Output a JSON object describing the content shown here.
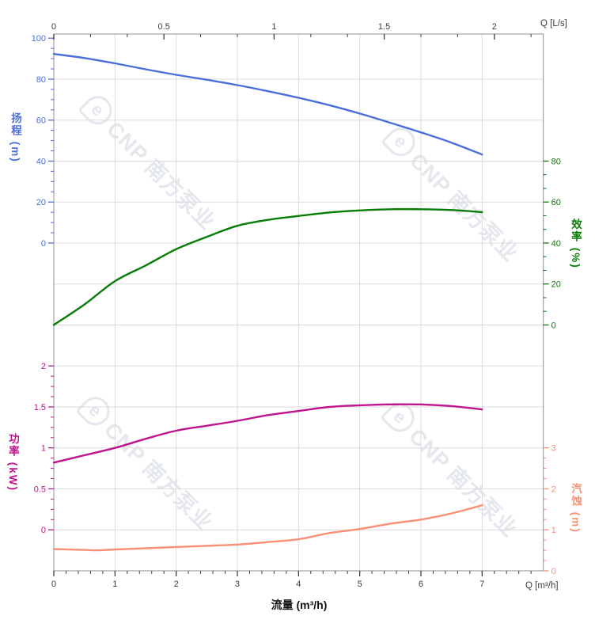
{
  "watermark": {
    "logo": "e",
    "text": "CNP 南方泵业",
    "color": "#e4e7ed"
  },
  "chart_data": {
    "type": "line",
    "title": "",
    "grid_color": "#dbdbdb",
    "border_color": "#a3a3a3",
    "tick_text_color": "#3d3d3d",
    "grid": true,
    "x_axis": {
      "bottom": {
        "title": "流量 (m³/h)",
        "corner_label": "Q [m³/h]",
        "min": 0,
        "max": 8,
        "ticks": [
          0,
          1,
          2,
          3,
          4,
          5,
          6,
          7
        ],
        "minor_step": 0.2
      },
      "top": {
        "corner_label": "Q [L/s]",
        "min": 0,
        "max": 2.22,
        "ticks": [
          0,
          0.5,
          1,
          1.5,
          2
        ],
        "minor_step": 0.1666667,
        "unit_to_m3h": 3.6
      }
    },
    "y_axes": {
      "head": {
        "title": "扬程 (m)",
        "color": "#4a6edb",
        "side": "left",
        "ticks": [
          0,
          20,
          40,
          60,
          80,
          100
        ],
        "minor_step": 5,
        "ylim": [
          0,
          100
        ]
      },
      "eff": {
        "title": "效率 (%)",
        "color": "#077c07",
        "side": "right",
        "ticks": [
          0,
          20,
          40,
          60,
          80
        ],
        "minor_step": 6.6667,
        "ylim": [
          0,
          80
        ]
      },
      "power": {
        "title": "功率 (kW)",
        "color": "#c1138d",
        "side": "left",
        "ticks": [
          0,
          0.5,
          1,
          1.5,
          2
        ],
        "minor_step": 0.125,
        "ylim": [
          0,
          2
        ]
      },
      "npsh": {
        "title": "汽蚀 (m)",
        "color": "#f98f75",
        "side": "right",
        "ticks": [
          0,
          1,
          2,
          3
        ],
        "minor_step": 0.25,
        "ylim": [
          0,
          3
        ]
      }
    },
    "series": [
      {
        "name": "head-curve",
        "axis": "head",
        "color": "#4a6edb",
        "points": [
          [
            0,
            92.3
          ],
          [
            0.5,
            90.3
          ],
          [
            1,
            87.7
          ],
          [
            1.5,
            84.8
          ],
          [
            2,
            82.1
          ],
          [
            2.5,
            79.7
          ],
          [
            3,
            77.1
          ],
          [
            3.5,
            74.1
          ],
          [
            4,
            70.9
          ],
          [
            4.5,
            67.3
          ],
          [
            5,
            63.2
          ],
          [
            5.5,
            58.7
          ],
          [
            6,
            54.0
          ],
          [
            6.5,
            49.0
          ],
          [
            7,
            43.2
          ]
        ]
      },
      {
        "name": "efficiency-curve",
        "axis": "eff",
        "color": "#077c07",
        "points": [
          [
            0,
            0
          ],
          [
            0.5,
            10.0
          ],
          [
            1,
            21.4
          ],
          [
            1.5,
            29.0
          ],
          [
            2,
            37.0
          ],
          [
            2.5,
            43.0
          ],
          [
            3,
            48.4
          ],
          [
            3.5,
            51.3
          ],
          [
            4,
            53.2
          ],
          [
            4.5,
            54.9
          ],
          [
            5,
            55.9
          ],
          [
            5.5,
            56.5
          ],
          [
            6,
            56.5
          ],
          [
            6.5,
            56.1
          ],
          [
            7,
            55.1
          ]
        ]
      },
      {
        "name": "power-curve",
        "axis": "power",
        "color": "#c1138d",
        "points": [
          [
            0,
            0.82
          ],
          [
            0.5,
            0.91
          ],
          [
            1,
            1.0
          ],
          [
            1.5,
            1.11
          ],
          [
            2,
            1.21
          ],
          [
            2.5,
            1.27
          ],
          [
            3,
            1.33
          ],
          [
            3.5,
            1.4
          ],
          [
            4,
            1.45
          ],
          [
            4.5,
            1.5
          ],
          [
            5,
            1.52
          ],
          [
            5.5,
            1.53
          ],
          [
            6,
            1.53
          ],
          [
            6.5,
            1.51
          ],
          [
            7,
            1.47
          ]
        ]
      },
      {
        "name": "npsh-curve",
        "axis": "npsh",
        "color": "#f98f75",
        "points": [
          [
            0,
            0.53
          ],
          [
            0.5,
            0.51
          ],
          [
            0.7,
            0.5
          ],
          [
            1,
            0.52
          ],
          [
            1.5,
            0.55
          ],
          [
            2,
            0.58
          ],
          [
            2.5,
            0.61
          ],
          [
            3,
            0.64
          ],
          [
            3.5,
            0.7
          ],
          [
            4,
            0.77
          ],
          [
            4.5,
            0.92
          ],
          [
            5,
            1.02
          ],
          [
            5.5,
            1.15
          ],
          [
            6,
            1.25
          ],
          [
            6.5,
            1.4
          ],
          [
            7,
            1.6
          ]
        ]
      }
    ]
  }
}
